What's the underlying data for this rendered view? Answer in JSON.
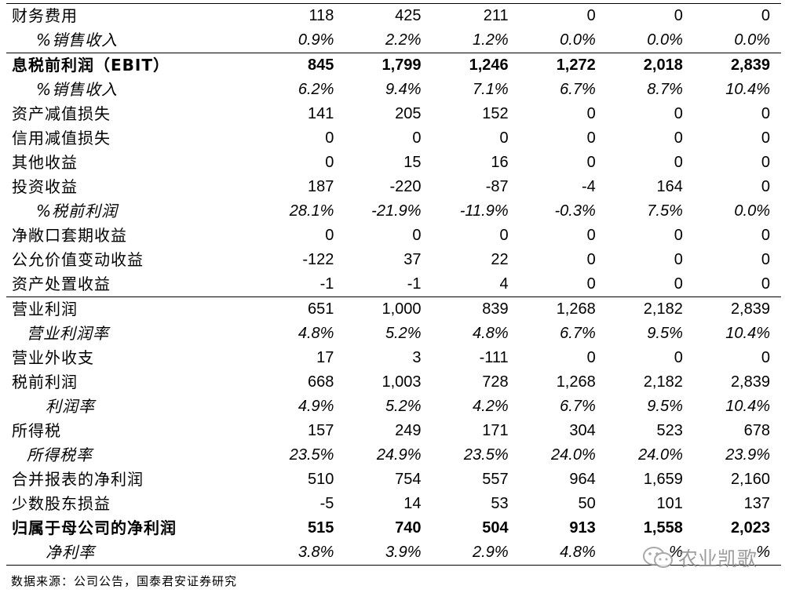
{
  "table": {
    "rows": [
      {
        "label": "财务费用",
        "values": [
          "118",
          "425",
          "211",
          "0",
          "0",
          "0"
        ],
        "style": "",
        "indent": 0
      },
      {
        "label": "%销售收入",
        "values": [
          "0.9%",
          "2.2%",
          "1.2%",
          "0.0%",
          "0.0%",
          "0.0%"
        ],
        "style": "italic",
        "indent": 1
      },
      {
        "label": "息税前利润（EBIT）",
        "values": [
          "845",
          "1,799",
          "1,246",
          "1,272",
          "2,018",
          "2,839"
        ],
        "style": "bold",
        "indent": 0
      },
      {
        "label": "%销售收入",
        "values": [
          "6.2%",
          "9.4%",
          "7.1%",
          "6.7%",
          "8.7%",
          "10.4%"
        ],
        "style": "italic",
        "indent": 1
      },
      {
        "label": "资产减值损失",
        "values": [
          "141",
          "205",
          "152",
          "0",
          "0",
          "0"
        ],
        "style": "",
        "indent": 0
      },
      {
        "label": "信用减值损失",
        "values": [
          "0",
          "0",
          "0",
          "0",
          "0",
          "0"
        ],
        "style": "",
        "indent": 0
      },
      {
        "label": "其他收益",
        "values": [
          "0",
          "15",
          "16",
          "0",
          "0",
          "0"
        ],
        "style": "",
        "indent": 0
      },
      {
        "label": "投资收益",
        "values": [
          "187",
          "-220",
          "-87",
          "-4",
          "164",
          "0"
        ],
        "style": "",
        "indent": 0
      },
      {
        "label": "%税前利润",
        "values": [
          "28.1%",
          "-21.9%",
          "-11.9%",
          "-0.3%",
          "7.5%",
          "0.0%"
        ],
        "style": "italic",
        "indent": 1
      },
      {
        "label": "净敞口套期收益",
        "values": [
          "0",
          "0",
          "0",
          "0",
          "0",
          "0"
        ],
        "style": "",
        "indent": 0
      },
      {
        "label": "公允价值变动收益",
        "values": [
          "-122",
          "37",
          "22",
          "0",
          "0",
          "0"
        ],
        "style": "",
        "indent": 0
      },
      {
        "label": "资产处置收益",
        "values": [
          "-1",
          "-1",
          "4",
          "0",
          "0",
          "0"
        ],
        "style": "",
        "indent": 0
      },
      {
        "label": "营业利润",
        "values": [
          "651",
          "1,000",
          "839",
          "1,268",
          "2,182",
          "2,839"
        ],
        "style": "",
        "indent": 0
      },
      {
        "label": "营业利润率",
        "values": [
          "4.8%",
          "5.2%",
          "4.8%",
          "6.7%",
          "9.5%",
          "10.4%"
        ],
        "style": "italic",
        "indent": 2
      },
      {
        "label": "营业外收支",
        "values": [
          "17",
          "3",
          "-111",
          "0",
          "0",
          "0"
        ],
        "style": "",
        "indent": 0
      },
      {
        "label": "税前利润",
        "values": [
          "668",
          "1,003",
          "728",
          "1,268",
          "2,182",
          "2,839"
        ],
        "style": "",
        "indent": 0
      },
      {
        "label": "利润率",
        "values": [
          "4.9%",
          "5.2%",
          "4.2%",
          "6.7%",
          "9.5%",
          "10.4%"
        ],
        "style": "italic",
        "indent": 3
      },
      {
        "label": "所得税",
        "values": [
          "157",
          "249",
          "171",
          "304",
          "523",
          "678"
        ],
        "style": "",
        "indent": 0
      },
      {
        "label": "所得税率",
        "values": [
          "23.5%",
          "24.9%",
          "23.5%",
          "24.0%",
          "24.0%",
          "23.9%"
        ],
        "style": "italic",
        "indent": 2
      },
      {
        "label": "合并报表的净利润",
        "values": [
          "510",
          "754",
          "557",
          "964",
          "1,659",
          "2,160"
        ],
        "style": "",
        "indent": 0
      },
      {
        "label": "少数股东损益",
        "values": [
          "-5",
          "14",
          "53",
          "50",
          "101",
          "137"
        ],
        "style": "",
        "indent": 0
      },
      {
        "label": "归属于母公司的净利润",
        "values": [
          "515",
          "740",
          "504",
          "913",
          "1,558",
          "2,023"
        ],
        "style": "bold",
        "indent": 0
      },
      {
        "label": "净利率",
        "values": [
          "3.8%",
          "3.9%",
          "2.9%",
          "4.8%",
          "%",
          "%"
        ],
        "style": "italic",
        "indent": 3
      }
    ],
    "separator_before_rows": [
      2,
      12
    ]
  },
  "source": "数据来源：公司公告，国泰君安证券研究",
  "watermark": {
    "text": "农业凯歌",
    "icon": "wechat-icon",
    "color": "#8c8c8c"
  }
}
